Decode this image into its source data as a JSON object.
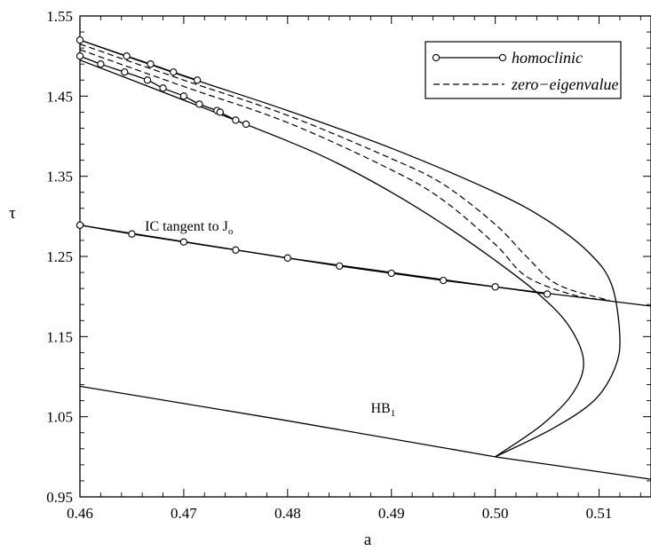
{
  "chart_data": {
    "type": "line",
    "title": "",
    "xlabel": "a",
    "ylabel": "τ",
    "xlim": [
      0.46,
      0.515
    ],
    "ylim": [
      0.95,
      1.55
    ],
    "xticks": [
      0.46,
      0.47,
      0.48,
      0.49,
      0.5,
      0.51
    ],
    "xtick_labels": [
      "0.46",
      "0.47",
      "0.48",
      "0.49",
      "0.50",
      "0.51"
    ],
    "yticks": [
      0.95,
      1.05,
      1.15,
      1.25,
      1.35,
      1.45,
      1.55
    ],
    "ytick_labels": [
      "0.95",
      "1.05",
      "1.15",
      "1.25",
      "1.35",
      "1.45",
      "1.55"
    ],
    "grid": false,
    "legend": {
      "placement": "top-right",
      "entries": [
        {
          "label": "homoclinic",
          "style": "solid-circles"
        },
        {
          "label": "zero−eigenvalue",
          "style": "dashed"
        }
      ]
    },
    "annotations": [
      {
        "text": "IC tangent to J",
        "sub": "o",
        "x": 0.4705,
        "y": 1.282
      },
      {
        "text": "HB",
        "sub": "1",
        "x": 0.4892,
        "y": 1.055
      }
    ],
    "series": [
      {
        "style": "solid",
        "points": [
          [
            0.46,
            1.088
          ],
          [
            0.48,
            1.045
          ],
          [
            0.5,
            1.0
          ],
          [
            0.515,
            0.972
          ]
        ]
      },
      {
        "style": "solid",
        "points": [
          [
            0.46,
            1.495
          ],
          [
            0.47,
            1.445
          ],
          [
            0.48,
            1.394
          ],
          [
            0.485,
            1.365
          ],
          [
            0.49,
            1.33
          ],
          [
            0.495,
            1.29
          ],
          [
            0.5,
            1.245
          ],
          [
            0.504,
            1.205
          ],
          [
            0.507,
            1.165
          ],
          [
            0.5085,
            1.12
          ],
          [
            0.5075,
            1.08
          ],
          [
            0.5045,
            1.04
          ],
          [
            0.5,
            1.0
          ]
        ]
      },
      {
        "style": "solid",
        "points": [
          [
            0.46,
            1.52
          ],
          [
            0.47,
            1.475
          ],
          [
            0.48,
            1.432
          ],
          [
            0.49,
            1.385
          ],
          [
            0.5,
            1.33
          ],
          [
            0.505,
            1.295
          ],
          [
            0.509,
            1.255
          ],
          [
            0.5112,
            1.215
          ],
          [
            0.512,
            1.15
          ],
          [
            0.5115,
            1.11
          ],
          [
            0.5095,
            1.07
          ],
          [
            0.5055,
            1.035
          ],
          [
            0.5,
            1.0
          ]
        ]
      },
      {
        "style": "solid",
        "points": [
          [
            0.46,
            1.289
          ],
          [
            0.48,
            1.248
          ],
          [
            0.5,
            1.212
          ],
          [
            0.515,
            1.188
          ]
        ]
      },
      {
        "style": "solid-circles",
        "points": [
          [
            0.46,
            1.289
          ],
          [
            0.465,
            1.278
          ],
          [
            0.47,
            1.268
          ],
          [
            0.475,
            1.258
          ],
          [
            0.48,
            1.248
          ],
          [
            0.485,
            1.238
          ],
          [
            0.49,
            1.229
          ],
          [
            0.495,
            1.22
          ],
          [
            0.5,
            1.212
          ],
          [
            0.505,
            1.203
          ]
        ]
      },
      {
        "style": "solid-circles",
        "points": [
          [
            0.46,
            1.52
          ],
          [
            0.4645,
            1.5
          ],
          [
            0.4668,
            1.49
          ],
          [
            0.469,
            1.48
          ],
          [
            0.4713,
            1.47
          ]
        ]
      },
      {
        "style": "solid-circles",
        "points": [
          [
            0.46,
            1.5
          ],
          [
            0.462,
            1.49
          ],
          [
            0.4643,
            1.48
          ],
          [
            0.4665,
            1.47
          ],
          [
            0.468,
            1.46
          ],
          [
            0.47,
            1.45
          ],
          [
            0.4715,
            1.44
          ],
          [
            0.4732,
            1.432
          ],
          [
            0.4735,
            1.43
          ],
          [
            0.475,
            1.42
          ],
          [
            0.476,
            1.415
          ]
        ]
      },
      {
        "style": "dashed",
        "points": [
          [
            0.46,
            1.515
          ],
          [
            0.47,
            1.47
          ],
          [
            0.48,
            1.426
          ],
          [
            0.49,
            1.372
          ],
          [
            0.495,
            1.34
          ],
          [
            0.5,
            1.29
          ],
          [
            0.503,
            1.25
          ],
          [
            0.506,
            1.215
          ],
          [
            0.511,
            1.195
          ]
        ]
      },
      {
        "style": "dashed",
        "points": [
          [
            0.46,
            1.508
          ],
          [
            0.47,
            1.462
          ],
          [
            0.48,
            1.417
          ],
          [
            0.49,
            1.358
          ],
          [
            0.495,
            1.32
          ],
          [
            0.5,
            1.265
          ],
          [
            0.503,
            1.225
          ],
          [
            0.5075,
            1.202
          ],
          [
            0.511,
            1.195
          ]
        ]
      }
    ]
  }
}
